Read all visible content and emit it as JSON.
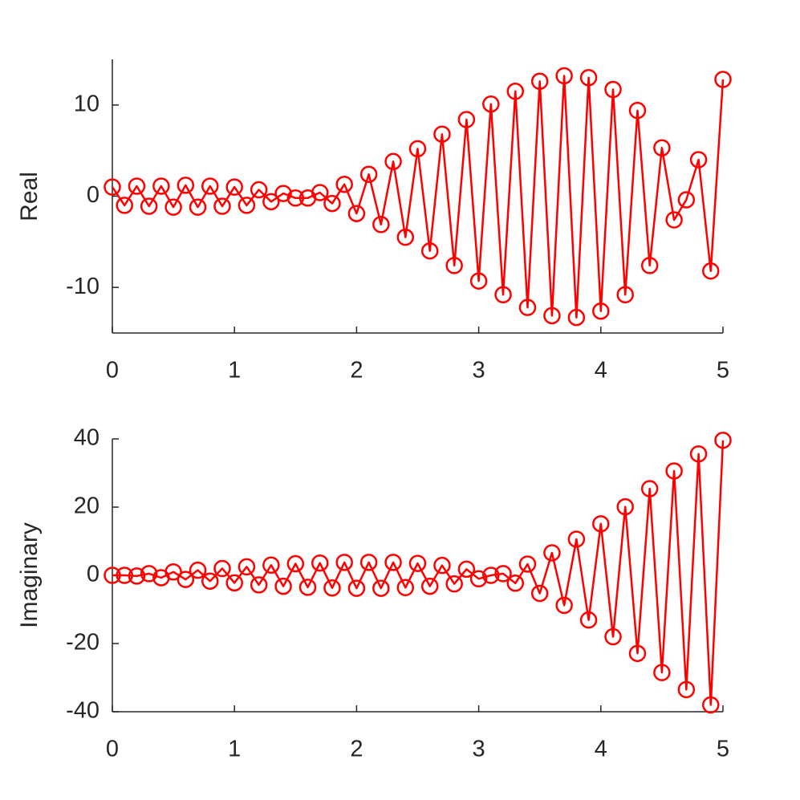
{
  "chart_data": [
    {
      "type": "line",
      "ylabel": "Real",
      "xlabel": "",
      "xlim": [
        0,
        5
      ],
      "ylim": [
        -15,
        15
      ],
      "xticks": [
        "0",
        "1",
        "2",
        "3",
        "4",
        "5"
      ],
      "yticks": [
        "-10",
        "0",
        "10"
      ],
      "ytick_values": [
        -10,
        0,
        10
      ],
      "xtick_values": [
        0,
        1,
        2,
        3,
        4,
        5
      ],
      "marker": "circle",
      "color": "#ff0000",
      "x": [
        0,
        0.1,
        0.2,
        0.3,
        0.4,
        0.5,
        0.6,
        0.7,
        0.8,
        0.9,
        1.0,
        1.1,
        1.2,
        1.3,
        1.4,
        1.5,
        1.6,
        1.7,
        1.8,
        1.9,
        2.0,
        2.1,
        2.2,
        2.3,
        2.4,
        2.5,
        2.6,
        2.7,
        2.8,
        2.9,
        3.0,
        3.1,
        3.2,
        3.3,
        3.4,
        3.5,
        3.6,
        3.7,
        3.8,
        3.9,
        4.0,
        4.1,
        4.2,
        4.3,
        4.4,
        4.5,
        4.6,
        4.7,
        4.8,
        4.9,
        5.0
      ],
      "y": [
        1.0,
        -1.0,
        1.1,
        -1.1,
        1.1,
        -1.2,
        1.2,
        -1.2,
        1.1,
        -1.1,
        1.0,
        -1.0,
        0.7,
        -0.6,
        0.3,
        -0.2,
        -0.2,
        0.4,
        -0.8,
        1.3,
        -1.9,
        2.4,
        -3.1,
        3.8,
        -4.5,
        5.2,
        -6.0,
        6.8,
        -7.6,
        8.4,
        -9.3,
        10.1,
        -10.8,
        11.5,
        -12.2,
        12.6,
        -13.1,
        13.2,
        -13.3,
        13.0,
        -12.6,
        11.7,
        -10.8,
        9.4,
        -7.6,
        5.3,
        -2.6,
        -0.4,
        4.0,
        -8.2,
        12.8
      ]
    },
    {
      "type": "line",
      "ylabel": "Imaginary",
      "xlabel": "",
      "xlim": [
        0,
        5
      ],
      "ylim": [
        -40,
        40
      ],
      "xticks": [
        "0",
        "1",
        "2",
        "3",
        "4",
        "5"
      ],
      "yticks": [
        "-40",
        "-20",
        "0",
        "20",
        "40"
      ],
      "ytick_values": [
        -40,
        -20,
        0,
        20,
        40
      ],
      "xtick_values": [
        0,
        1,
        2,
        3,
        4,
        5
      ],
      "marker": "circle",
      "color": "#ff0000",
      "x": [
        0,
        0.1,
        0.2,
        0.3,
        0.4,
        0.5,
        0.6,
        0.7,
        0.8,
        0.9,
        1.0,
        1.1,
        1.2,
        1.3,
        1.4,
        1.5,
        1.6,
        1.7,
        1.8,
        1.9,
        2.0,
        2.1,
        2.2,
        2.3,
        2.4,
        2.5,
        2.6,
        2.7,
        2.8,
        2.9,
        3.0,
        3.1,
        3.2,
        3.3,
        3.4,
        3.5,
        3.6,
        3.7,
        3.8,
        3.9,
        4.0,
        4.1,
        4.2,
        4.3,
        4.4,
        4.5,
        4.6,
        4.7,
        4.8,
        4.9,
        5.0
      ],
      "y": [
        0.0,
        0.0,
        -0.2,
        0.5,
        -0.7,
        1.0,
        -1.2,
        1.5,
        -1.7,
        2.0,
        -2.2,
        2.5,
        -2.8,
        3.0,
        -3.2,
        3.4,
        -3.5,
        3.6,
        -3.7,
        3.8,
        -3.8,
        3.8,
        -3.8,
        3.8,
        -3.6,
        3.5,
        -3.2,
        2.9,
        -2.5,
        1.8,
        -1.0,
        0.0,
        0.5,
        -2.3,
        3.3,
        -5.3,
        6.6,
        -8.8,
        10.6,
        -13.1,
        15.1,
        -18.0,
        20.1,
        -22.9,
        25.4,
        -28.5,
        30.6,
        -33.5,
        35.6,
        -38.0,
        39.6
      ]
    }
  ]
}
